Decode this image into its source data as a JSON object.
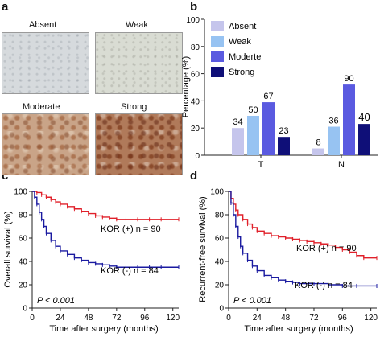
{
  "panels": {
    "a": "a",
    "b": "b",
    "c": "c",
    "d": "d"
  },
  "micrographs": [
    {
      "label": "Absent"
    },
    {
      "label": "Weak"
    },
    {
      "label": "Moderate"
    },
    {
      "label": "Strong"
    }
  ],
  "chart_data": [
    {
      "type": "bar",
      "categories": [
        "T",
        "N"
      ],
      "ylabel": "Percentage (%)",
      "ylim": [
        0,
        100
      ],
      "yticks": [
        0,
        20,
        40,
        60,
        80,
        100
      ],
      "legend_position": "top-left",
      "series": [
        {
          "name": "Absent",
          "color": "#c5c5ec",
          "values": [
            20,
            5
          ],
          "labels": [
            "34",
            "8"
          ]
        },
        {
          "name": "Weak",
          "color": "#97c3f2",
          "values": [
            29,
            21
          ],
          "labels": [
            "50",
            "36"
          ]
        },
        {
          "name": "Moderte",
          "color": "#5a5ae0",
          "values": [
            39,
            52
          ],
          "labels": [
            "67",
            "90"
          ]
        },
        {
          "name": "Strong",
          "color": "#0f0f78",
          "values": [
            13.5,
            23
          ],
          "labels": [
            "23",
            "40"
          ]
        }
      ]
    },
    {
      "type": "line",
      "xlabel": "Time after surgery (months)",
      "ylabel": "Overall survival (%)",
      "xlim": [
        0,
        125
      ],
      "ylim": [
        0,
        100
      ],
      "xticks": [
        0,
        24,
        48,
        72,
        96,
        120
      ],
      "yticks": [
        0,
        20,
        40,
        60,
        80,
        100
      ],
      "annotation": "P < 0.001",
      "series": [
        {
          "name": "KOR (+) n = 90",
          "color": "#e0202a",
          "x": [
            0,
            4,
            8,
            12,
            16,
            20,
            24,
            30,
            36,
            42,
            48,
            54,
            60,
            66,
            72,
            80,
            90,
            100,
            110,
            125
          ],
          "y": [
            100,
            99,
            97,
            95,
            93,
            91,
            89,
            87,
            85,
            83,
            81,
            79,
            78,
            77,
            76,
            76,
            76,
            76,
            76,
            76
          ]
        },
        {
          "name": "KOR (-) n = 84",
          "color": "#1a1aa0",
          "x": [
            0,
            2,
            4,
            6,
            8,
            10,
            12,
            16,
            20,
            24,
            30,
            36,
            42,
            48,
            54,
            60,
            66,
            72,
            80,
            90,
            100,
            110,
            125
          ],
          "y": [
            100,
            95,
            89,
            82,
            76,
            70,
            64,
            58,
            53,
            49,
            46,
            43,
            41,
            39,
            38,
            37,
            36,
            35,
            35,
            35,
            35,
            35,
            35
          ]
        }
      ]
    },
    {
      "type": "line",
      "xlabel": "Time after surgery (months)",
      "ylabel": "Recurrent-free survival (%)",
      "xlim": [
        0,
        125
      ],
      "ylim": [
        0,
        100
      ],
      "xticks": [
        0,
        24,
        48,
        72,
        96,
        120
      ],
      "yticks": [
        0,
        20,
        40,
        60,
        80,
        100
      ],
      "annotation": "P < 0.001",
      "series": [
        {
          "name": "KOR (+) n = 90",
          "color": "#e0202a",
          "x": [
            0,
            2,
            4,
            6,
            8,
            12,
            16,
            20,
            24,
            30,
            36,
            42,
            48,
            54,
            60,
            66,
            72,
            78,
            84,
            90,
            96,
            102,
            108,
            114,
            125
          ],
          "y": [
            100,
            94,
            89,
            84,
            80,
            76,
            72,
            69,
            66,
            64,
            62,
            61,
            60,
            59,
            58,
            57,
            56,
            55,
            54,
            52,
            50,
            48,
            45,
            43,
            43
          ]
        },
        {
          "name": "KOR (-) n = 84",
          "color": "#1a1aa0",
          "x": [
            0,
            2,
            4,
            6,
            8,
            10,
            12,
            16,
            20,
            24,
            30,
            36,
            42,
            48,
            54,
            60,
            72,
            84,
            96,
            108,
            125
          ],
          "y": [
            100,
            90,
            80,
            70,
            61,
            53,
            47,
            41,
            36,
            32,
            28,
            26,
            24,
            23,
            22,
            21,
            21,
            20,
            19,
            19,
            19
          ]
        }
      ]
    }
  ]
}
